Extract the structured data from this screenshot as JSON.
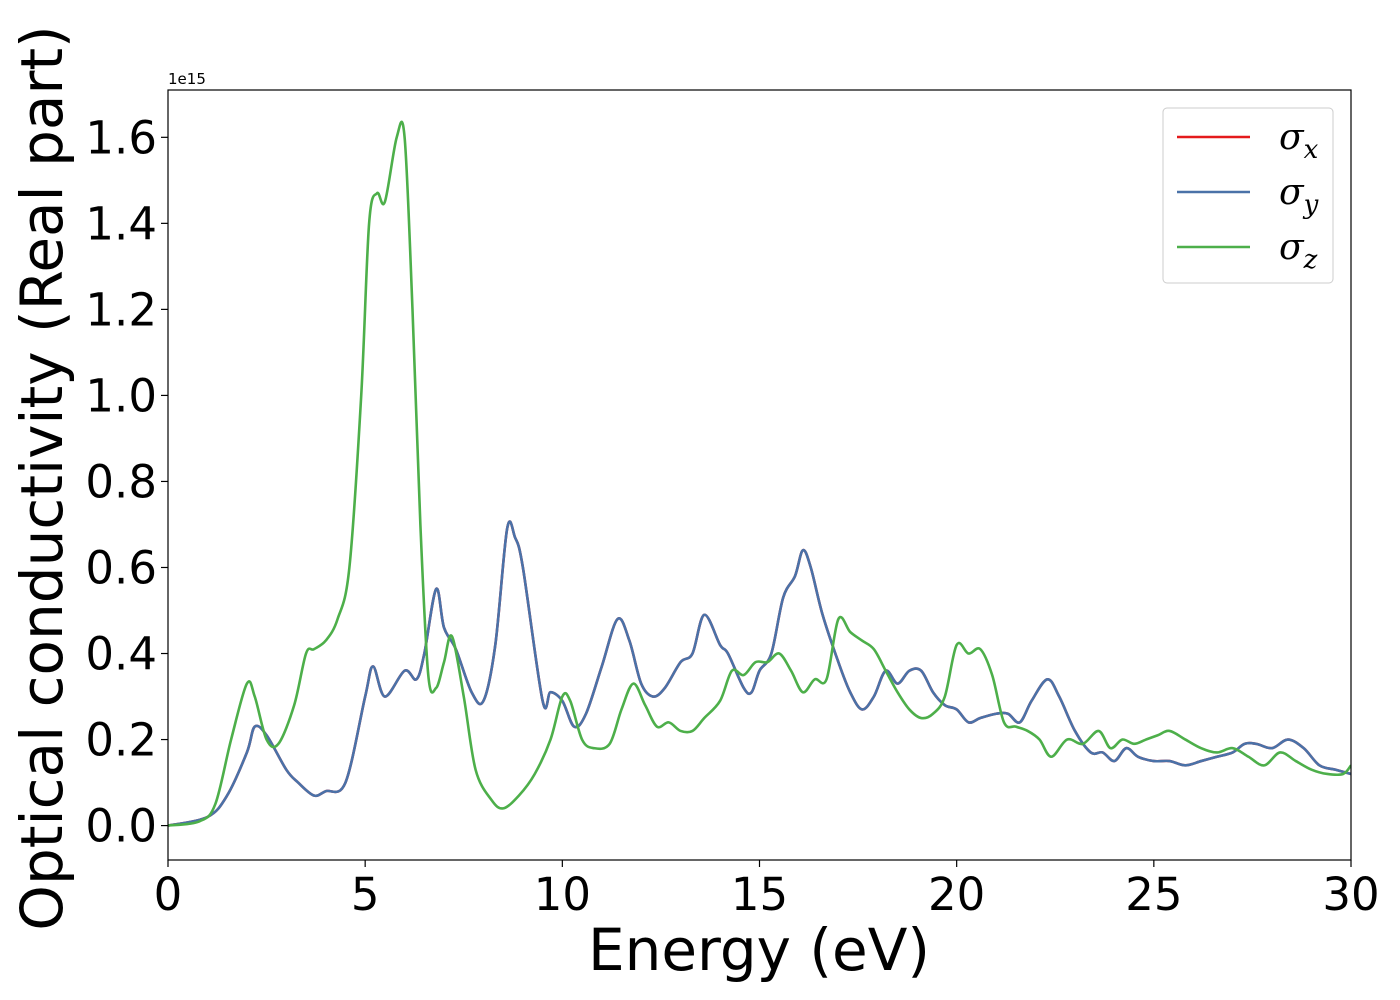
{
  "chart_data": {
    "type": "line",
    "xlabel": "Energy (eV)",
    "ylabel": "Optical conductivity (Real part)",
    "y_offset_label": "1e15",
    "xlim": [
      0,
      30
    ],
    "ylim": [
      -0.08,
      1.71
    ],
    "x_ticks": [
      0,
      5,
      10,
      15,
      20,
      25,
      30
    ],
    "x_tick_labels": [
      "0",
      "5",
      "10",
      "15",
      "20",
      "25",
      "30"
    ],
    "y_ticks": [
      0.0,
      0.2,
      0.4,
      0.6,
      0.8,
      1.0,
      1.2,
      1.4,
      1.6
    ],
    "y_tick_labels": [
      "0.0",
      "0.2",
      "0.4",
      "0.6",
      "0.8",
      "1.0",
      "1.2",
      "1.4",
      "1.6"
    ],
    "grid": false,
    "legend_position": "top-right",
    "series": [
      {
        "name": "σ_x",
        "legend_base": "σ",
        "legend_sub": "x",
        "color": "#e41a1c",
        "x": [
          0,
          1,
          1.5,
          2,
          2.2,
          2.5,
          3,
          3.3,
          3.7,
          4,
          4.5,
          5,
          5.2,
          5.5,
          6,
          6.3,
          6.5,
          6.8,
          7,
          7.3,
          7.7,
          8,
          8.3,
          8.6,
          8.8,
          9,
          9.5,
          9.7,
          10,
          10.3,
          10.6,
          11,
          11.4,
          11.7,
          12,
          12.3,
          12.6,
          13,
          13.3,
          13.6,
          14,
          14.2,
          14.6,
          14.8,
          15,
          15.3,
          15.6,
          15.9,
          16.1,
          16.3,
          16.6,
          17,
          17.3,
          17.6,
          17.9,
          18.2,
          18.5,
          18.8,
          19.1,
          19.4,
          19.7,
          20,
          20.3,
          20.6,
          21,
          21.3,
          21.6,
          21.9,
          22.3,
          22.6,
          23,
          23.4,
          23.7,
          24,
          24.3,
          24.6,
          25,
          25.4,
          25.8,
          26.2,
          26.6,
          27,
          27.3,
          27.6,
          28,
          28.4,
          28.8,
          29.2,
          29.6,
          30
        ],
        "y": [
          0,
          0.02,
          0.07,
          0.17,
          0.23,
          0.21,
          0.13,
          0.1,
          0.07,
          0.08,
          0.1,
          0.3,
          0.37,
          0.3,
          0.36,
          0.34,
          0.4,
          0.55,
          0.46,
          0.41,
          0.31,
          0.29,
          0.42,
          0.69,
          0.67,
          0.6,
          0.29,
          0.31,
          0.29,
          0.23,
          0.26,
          0.37,
          0.48,
          0.43,
          0.33,
          0.3,
          0.32,
          0.38,
          0.4,
          0.49,
          0.42,
          0.4,
          0.32,
          0.31,
          0.36,
          0.4,
          0.53,
          0.58,
          0.64,
          0.6,
          0.49,
          0.38,
          0.31,
          0.27,
          0.3,
          0.36,
          0.33,
          0.36,
          0.36,
          0.31,
          0.28,
          0.27,
          0.24,
          0.25,
          0.26,
          0.26,
          0.24,
          0.29,
          0.34,
          0.3,
          0.22,
          0.17,
          0.17,
          0.15,
          0.18,
          0.16,
          0.15,
          0.15,
          0.14,
          0.15,
          0.16,
          0.17,
          0.19,
          0.19,
          0.18,
          0.2,
          0.18,
          0.14,
          0.13,
          0.12
        ]
      },
      {
        "name": "σ_y",
        "legend_base": "σ",
        "legend_sub": "y",
        "color": "#4a72a8",
        "x": [
          0,
          1,
          1.5,
          2,
          2.2,
          2.5,
          3,
          3.3,
          3.7,
          4,
          4.5,
          5,
          5.2,
          5.5,
          6,
          6.3,
          6.5,
          6.8,
          7,
          7.3,
          7.7,
          8,
          8.3,
          8.6,
          8.8,
          9,
          9.5,
          9.7,
          10,
          10.3,
          10.6,
          11,
          11.4,
          11.7,
          12,
          12.3,
          12.6,
          13,
          13.3,
          13.6,
          14,
          14.2,
          14.6,
          14.8,
          15,
          15.3,
          15.6,
          15.9,
          16.1,
          16.3,
          16.6,
          17,
          17.3,
          17.6,
          17.9,
          18.2,
          18.5,
          18.8,
          19.1,
          19.4,
          19.7,
          20,
          20.3,
          20.6,
          21,
          21.3,
          21.6,
          21.9,
          22.3,
          22.6,
          23,
          23.4,
          23.7,
          24,
          24.3,
          24.6,
          25,
          25.4,
          25.8,
          26.2,
          26.6,
          27,
          27.3,
          27.6,
          28,
          28.4,
          28.8,
          29.2,
          29.6,
          30
        ],
        "y": [
          0,
          0.02,
          0.07,
          0.17,
          0.23,
          0.21,
          0.13,
          0.1,
          0.07,
          0.08,
          0.1,
          0.3,
          0.37,
          0.3,
          0.36,
          0.34,
          0.4,
          0.55,
          0.46,
          0.41,
          0.31,
          0.29,
          0.42,
          0.69,
          0.67,
          0.6,
          0.29,
          0.31,
          0.29,
          0.23,
          0.26,
          0.37,
          0.48,
          0.43,
          0.33,
          0.3,
          0.32,
          0.38,
          0.4,
          0.49,
          0.42,
          0.4,
          0.32,
          0.31,
          0.36,
          0.4,
          0.53,
          0.58,
          0.64,
          0.6,
          0.49,
          0.38,
          0.31,
          0.27,
          0.3,
          0.36,
          0.33,
          0.36,
          0.36,
          0.31,
          0.28,
          0.27,
          0.24,
          0.25,
          0.26,
          0.26,
          0.24,
          0.29,
          0.34,
          0.3,
          0.22,
          0.17,
          0.17,
          0.15,
          0.18,
          0.16,
          0.15,
          0.15,
          0.14,
          0.15,
          0.16,
          0.17,
          0.19,
          0.19,
          0.18,
          0.2,
          0.18,
          0.14,
          0.13,
          0.12
        ]
      },
      {
        "name": "σ_z",
        "legend_base": "σ",
        "legend_sub": "z",
        "color": "#4daf4a",
        "x": [
          0,
          0.8,
          1.2,
          1.6,
          2,
          2.2,
          2.5,
          2.8,
          3.2,
          3.5,
          3.7,
          4,
          4.3,
          4.6,
          4.9,
          5.1,
          5.3,
          5.5,
          5.8,
          6,
          6.2,
          6.4,
          6.6,
          6.8,
          7,
          7.2,
          7.5,
          7.8,
          8.2,
          8.5,
          8.9,
          9.3,
          9.7,
          10,
          10.2,
          10.5,
          10.8,
          11.2,
          11.5,
          11.8,
          12.1,
          12.4,
          12.7,
          13,
          13.3,
          13.6,
          14,
          14.3,
          14.6,
          14.9,
          15.2,
          15.5,
          15.8,
          16.1,
          16.4,
          16.7,
          17,
          17.3,
          17.6,
          17.9,
          18.2,
          18.5,
          18.8,
          19.1,
          19.4,
          19.7,
          20,
          20.3,
          20.6,
          20.9,
          21.2,
          21.5,
          21.8,
          22.1,
          22.4,
          22.8,
          23.2,
          23.6,
          23.9,
          24.2,
          24.5,
          24.8,
          25.1,
          25.4,
          25.8,
          26.2,
          26.6,
          27,
          27.4,
          27.8,
          28.2,
          28.6,
          29,
          29.4,
          29.8,
          30
        ],
        "y": [
          0,
          0.01,
          0.05,
          0.2,
          0.33,
          0.3,
          0.2,
          0.19,
          0.28,
          0.4,
          0.41,
          0.43,
          0.48,
          0.6,
          1.0,
          1.4,
          1.47,
          1.45,
          1.6,
          1.6,
          1.2,
          0.7,
          0.35,
          0.32,
          0.38,
          0.44,
          0.3,
          0.13,
          0.06,
          0.04,
          0.07,
          0.12,
          0.2,
          0.3,
          0.29,
          0.2,
          0.18,
          0.19,
          0.27,
          0.33,
          0.28,
          0.23,
          0.24,
          0.22,
          0.22,
          0.25,
          0.29,
          0.36,
          0.35,
          0.38,
          0.38,
          0.4,
          0.36,
          0.31,
          0.34,
          0.34,
          0.48,
          0.45,
          0.43,
          0.41,
          0.36,
          0.31,
          0.27,
          0.25,
          0.26,
          0.3,
          0.42,
          0.4,
          0.41,
          0.35,
          0.24,
          0.23,
          0.22,
          0.2,
          0.16,
          0.2,
          0.19,
          0.22,
          0.18,
          0.2,
          0.19,
          0.2,
          0.21,
          0.22,
          0.2,
          0.18,
          0.17,
          0.18,
          0.16,
          0.14,
          0.17,
          0.15,
          0.13,
          0.12,
          0.12,
          0.14
        ]
      }
    ]
  }
}
